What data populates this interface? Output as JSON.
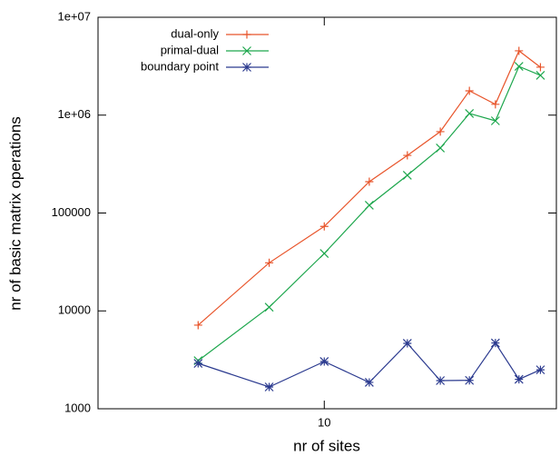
{
  "chart_data": {
    "type": "line",
    "xlabel": "nr of sites",
    "ylabel": "nr of basic matrix operations",
    "x": [
      6,
      8,
      10,
      12,
      14,
      16,
      18,
      20,
      22,
      24
    ],
    "xscale": "log",
    "yscale": "log",
    "xlim": [
      4,
      25.6
    ],
    "xticks": [
      10
    ],
    "ylim": [
      1000,
      10000000
    ],
    "yticks": [
      1000,
      10000,
      100000,
      {
        "value": 1000000,
        "label": "1e+06"
      },
      {
        "value": 10000000,
        "label": "1e+07"
      }
    ],
    "legend": "top-left",
    "series": [
      {
        "name": "dual-only",
        "color": "#e8542a",
        "marker": "plus",
        "values": [
          7150,
          31000,
          73000,
          209000,
          388000,
          678000,
          1770000,
          1290000,
          4540000,
          3090000
        ]
      },
      {
        "name": "primal-dual",
        "color": "#1ca64c",
        "marker": "cross",
        "values": [
          3100,
          10900,
          38600,
          120000,
          243000,
          461000,
          1040000,
          875000,
          3150000,
          2550000
        ]
      },
      {
        "name": "boundary point",
        "color": "#2b3a8f",
        "marker": "star",
        "values": [
          2910,
          1670,
          3040,
          1860,
          4660,
          1940,
          1950,
          4700,
          2000,
          2500
        ]
      }
    ]
  }
}
